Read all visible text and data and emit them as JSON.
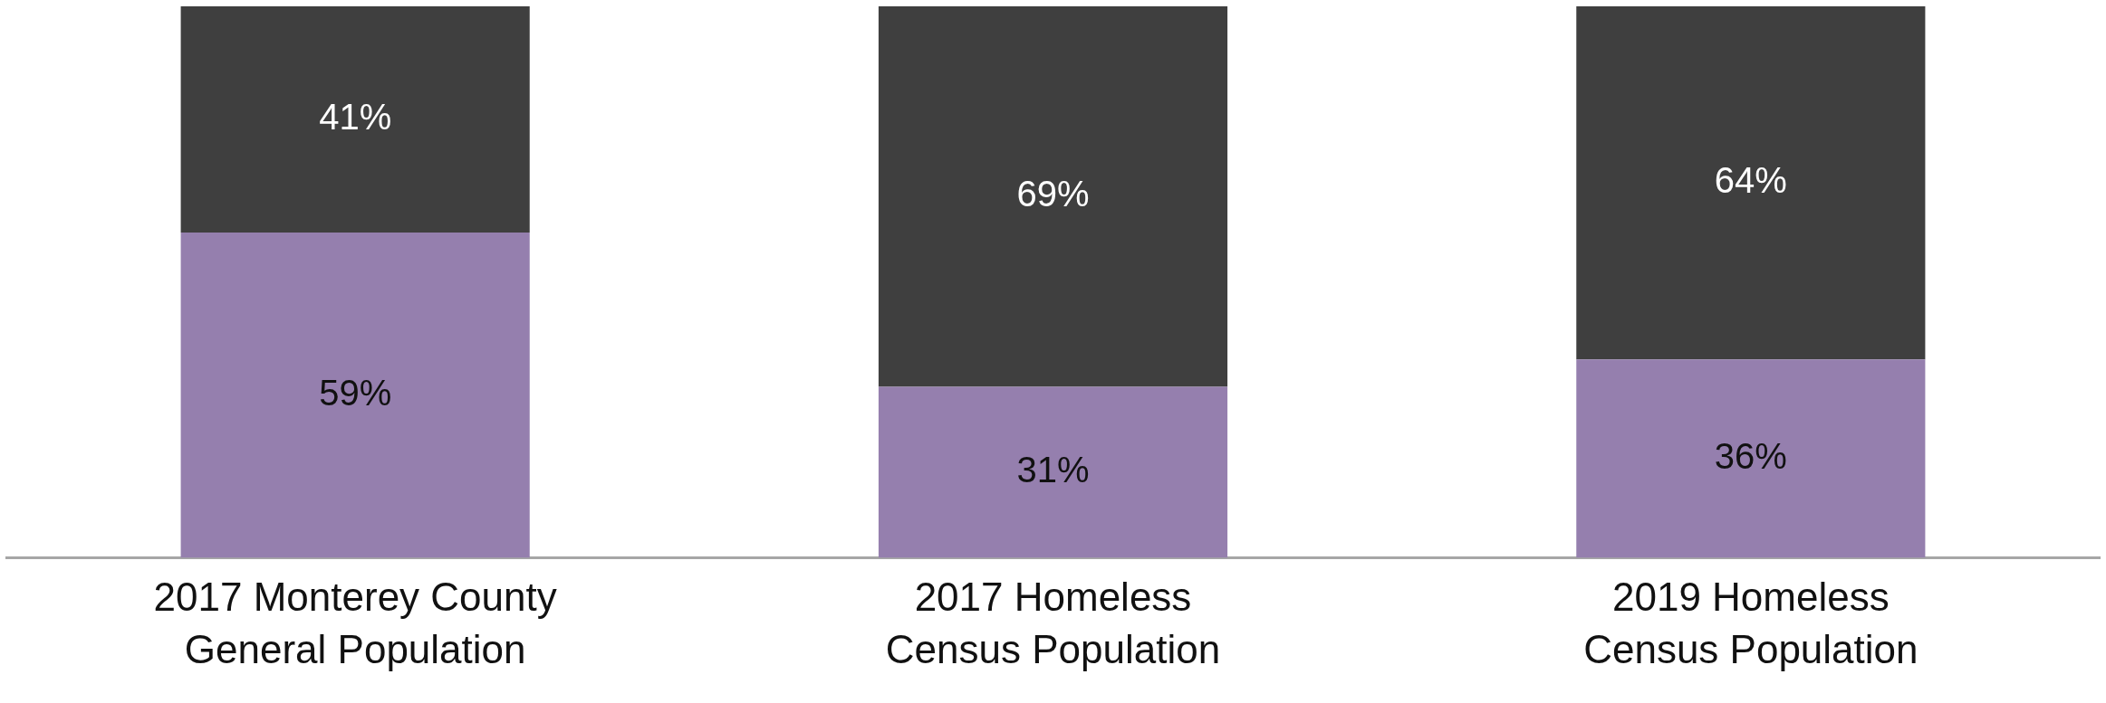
{
  "chart_data": {
    "type": "bar",
    "stacked": true,
    "categories": [
      "2017 Monterey County\nGeneral Population",
      "2017 Homeless\nCensus Population",
      "2019 Homeless\nCensus Population"
    ],
    "series": [
      {
        "color": "#957fae",
        "values": [
          59,
          31,
          36
        ],
        "value_labels": [
          "59%",
          "31%",
          "36%"
        ]
      },
      {
        "color": "#3f3f3f",
        "values": [
          41,
          69,
          64
        ],
        "value_labels": [
          "41%",
          "69%",
          "64%"
        ]
      }
    ],
    "tick_labels": "x",
    "legend": false
  }
}
